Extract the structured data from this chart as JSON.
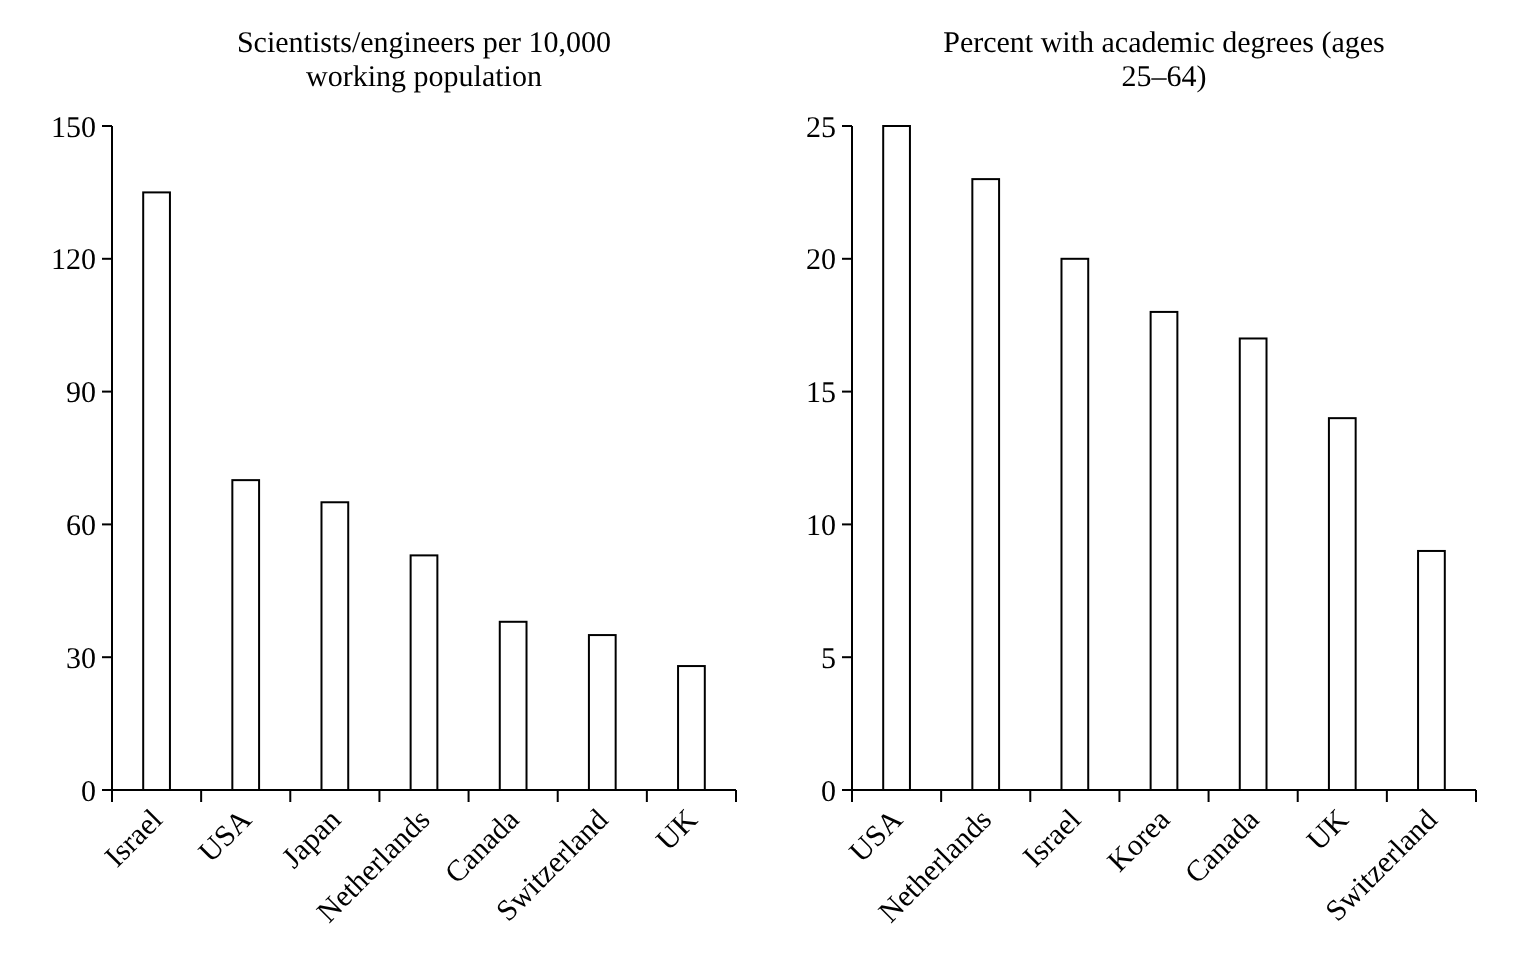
{
  "chart_data": [
    {
      "type": "bar",
      "title": "Scientists/engineers per 10,000 working population",
      "categories": [
        "Israel",
        "USA",
        "Japan",
        "Netherlands",
        "Canada",
        "Switzerland",
        "UK"
      ],
      "values": [
        135,
        70,
        65,
        53,
        38,
        35,
        28
      ],
      "color": "#ffffff",
      "ylim": [
        0,
        150
      ],
      "yticks": [
        0,
        30,
        60,
        90,
        120,
        150
      ],
      "grid": false
    },
    {
      "type": "bar",
      "title": "Percent with academic degrees (ages 25–64)",
      "categories": [
        "USA",
        "Netherlands",
        "Israel",
        "Korea",
        "Canada",
        "UK",
        "Switzerland"
      ],
      "values": [
        25,
        23,
        20,
        18,
        17,
        14,
        9
      ],
      "color": "#ffffff",
      "ylim": [
        0,
        25
      ],
      "yticks": [
        0,
        5,
        10,
        15,
        20,
        25
      ],
      "grid": false
    }
  ]
}
